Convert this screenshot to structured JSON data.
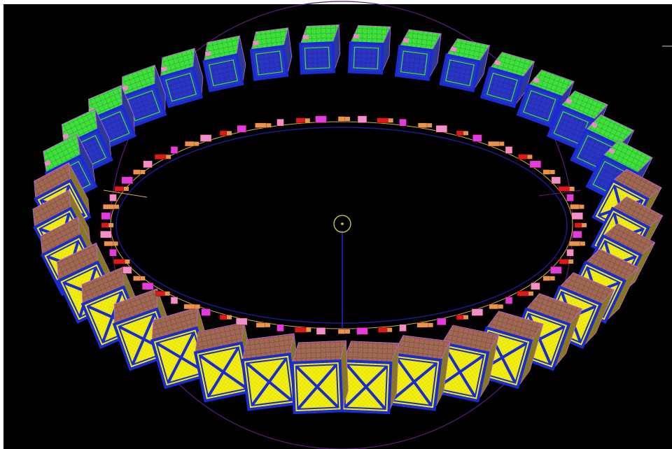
{
  "scene": {
    "background": "#000000",
    "frame_color": "#ffffff",
    "guide_circle_color": "#5a1e78",
    "inner_ring_color": "#1a1a8c",
    "beam_path_color": "#c8b44a",
    "axis_line_color": "#1e2ad2",
    "center_marker_color": "#d6d23a",
    "module_count": 36,
    "module_types": [
      "green-top-module",
      "yellow-face-module"
    ],
    "colors": {
      "module_frame": "#1b2cd6",
      "module_face_yellow": "#f4f00e",
      "module_top_green": "#3fe63a",
      "module_top_brown": "#a56a52",
      "module_wireframe": "#c064d8",
      "magnet_red": "#e01818",
      "magnet_magenta": "#e03ce0",
      "magnet_orange": "#e8944a",
      "magnet_pink": "#f090c8"
    }
  }
}
